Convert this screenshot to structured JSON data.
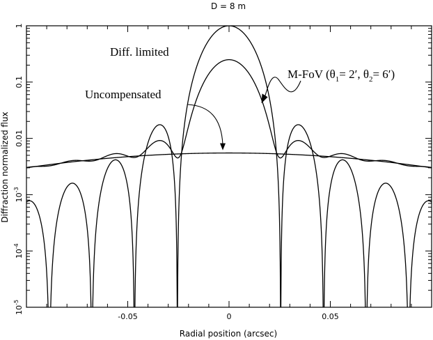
{
  "chart_data": {
    "type": "line",
    "title": "D =    8 m",
    "xlabel": "Radial position (arcsec)",
    "ylabel": "Diffraction normalized flux",
    "xlim": [
      -0.1,
      0.1
    ],
    "ylim": [
      1e-05,
      1
    ],
    "yscale": "log",
    "grid": false,
    "x_ticks": [
      {
        "value": -0.05,
        "label": "-0.05"
      },
      {
        "value": 0,
        "label": "0"
      },
      {
        "value": 0.05,
        "label": "0.05"
      }
    ],
    "y_ticks": [
      {
        "value": 1e-05,
        "label": "10^-5",
        "mant": "10",
        "exp": "-5"
      },
      {
        "value": 0.0001,
        "label": "10^-4",
        "mant": "10",
        "exp": "-4"
      },
      {
        "value": 0.001,
        "label": "10^-3",
        "mant": "10",
        "exp": "-3"
      },
      {
        "value": 0.01,
        "label": "0.01"
      },
      {
        "value": 0.1,
        "label": "0.1"
      },
      {
        "value": 1,
        "label": "1"
      }
    ],
    "series": [
      {
        "name": "Diff. limited",
        "key": "diff",
        "peak": 1.0
      },
      {
        "name": "M-FoV (θ1= 2′, θ2= 6′)",
        "key": "mfov",
        "peak": 0.25
      },
      {
        "name": "Uncompensated",
        "key": "unc",
        "values_at": {
          "x": [
            -0.1,
            0,
            0.1
          ],
          "y": [
            0.003,
            0.0055,
            0.003
          ]
        }
      }
    ],
    "annotations": [
      {
        "key": "diff",
        "text": "Diff. limited"
      },
      {
        "key": "unc",
        "text": "Uncompensated"
      },
      {
        "key": "mfov",
        "text": "M-FoV (θ",
        "sub1": "1",
        "mid": "= 2′, θ",
        "sub2": "2",
        "end": "= 6′)"
      }
    ]
  }
}
